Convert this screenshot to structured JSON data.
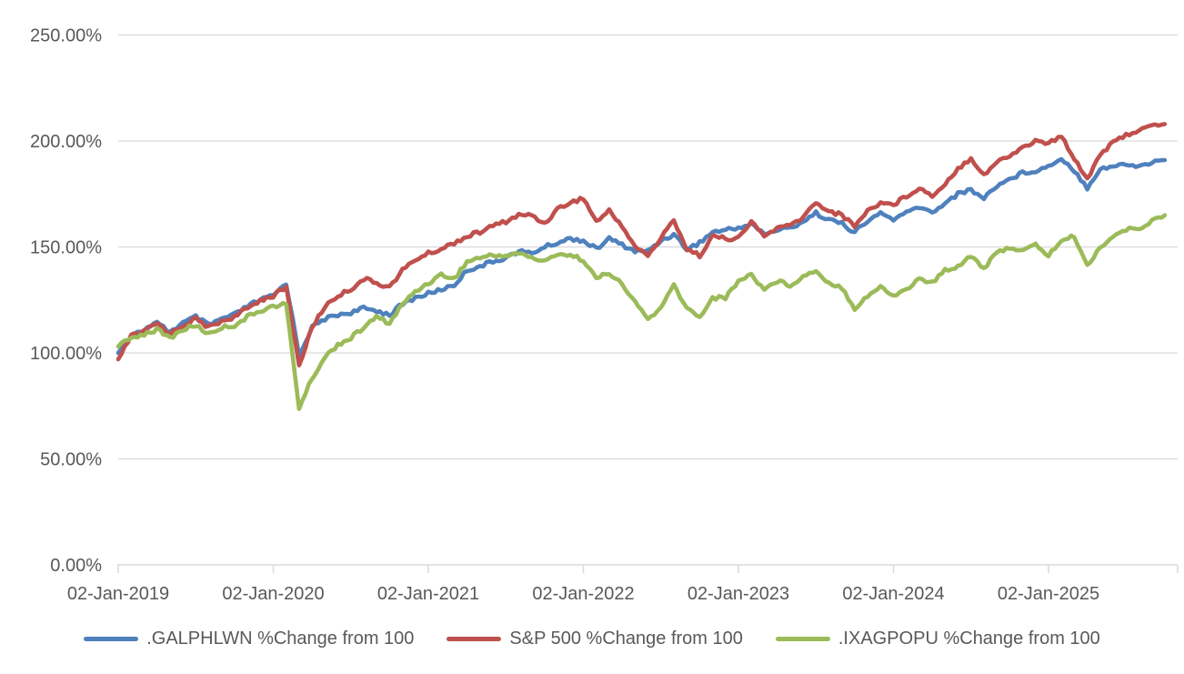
{
  "chart_data": {
    "type": "line",
    "title": "",
    "grid": "horizontal",
    "legend_position": "bottom",
    "background": "#ffffff",
    "gridline_color": "#d9d9d9",
    "axis_text_color": "#595959",
    "y_axis": {
      "unit": "%",
      "min": 0,
      "max": 250,
      "step": 50,
      "tick_values": [
        0,
        50,
        100,
        150,
        200,
        250
      ],
      "tick_labels": [
        "0.00%",
        "50.00%",
        "100.00%",
        "150.00%",
        "200.00%",
        "250.00%"
      ]
    },
    "x_axis": {
      "tick_labels": [
        "02-Jan-2019",
        "02-Jan-2020",
        "02-Jan-2021",
        "02-Jan-2022",
        "02-Jan-2023",
        "02-Jan-2024",
        "02-Jan-2025"
      ],
      "start": "2019-01",
      "end": "2025-10",
      "points_per_month": 1
    },
    "series": [
      {
        "name": ".GALPHLWN %Change from 100",
        "color": "#4F81BD",
        "values": [
          100,
          108,
          111,
          114,
          110,
          114,
          117,
          113,
          116,
          118,
          122,
          125,
          127,
          133,
          99,
          112,
          116,
          118,
          119,
          121,
          120,
          118,
          123,
          126,
          128,
          130,
          132,
          139,
          141,
          143,
          145,
          148,
          147,
          150,
          152,
          154,
          153,
          149,
          154,
          151,
          148,
          148,
          153,
          156,
          149,
          152,
          157,
          158,
          159,
          161,
          156,
          158,
          159,
          162,
          166,
          163,
          161,
          157,
          162,
          166,
          163,
          166,
          169,
          166,
          171,
          175,
          177,
          173,
          179,
          182,
          185,
          186,
          188,
          192,
          186,
          178,
          187,
          188,
          189,
          188,
          190,
          191
        ]
      },
      {
        "name": "S&P 500 %Change from 100",
        "color": "#C0504D",
        "values": [
          97,
          108,
          110,
          114,
          109,
          113,
          116,
          112,
          115,
          117,
          121,
          125,
          127,
          131,
          94,
          112,
          122,
          127,
          130,
          135,
          133,
          131,
          139,
          144,
          147,
          149,
          152,
          155,
          157,
          160,
          162,
          165,
          165,
          161,
          168,
          171,
          173,
          162,
          167,
          160,
          150,
          146,
          154,
          163,
          149,
          146,
          155,
          154,
          154,
          162,
          155,
          159,
          160,
          164,
          171,
          167,
          165,
          160,
          167,
          171,
          170,
          174,
          178,
          174,
          180,
          187,
          192,
          184,
          190,
          193,
          197,
          200,
          199,
          202,
          192,
          182,
          194,
          199,
          203,
          205,
          207,
          208
        ]
      },
      {
        "name": ".IXAGPOPU %Change from 100",
        "color": "#9BBB59",
        "values": [
          103,
          107,
          109,
          111,
          107,
          111,
          113,
          109,
          112,
          113,
          117,
          120,
          122,
          123,
          74,
          88,
          98,
          104,
          107,
          112,
          117,
          114,
          123,
          129,
          133,
          137,
          135,
          143,
          145,
          146,
          146,
          147,
          145,
          143,
          147,
          146,
          144,
          135,
          138,
          132,
          124,
          116,
          121,
          132,
          121,
          117,
          126,
          126,
          134,
          137,
          130,
          134,
          132,
          136,
          139,
          133,
          131,
          121,
          127,
          131,
          127,
          130,
          135,
          133,
          139,
          141,
          146,
          140,
          147,
          150,
          148,
          151,
          146,
          153,
          155,
          141,
          150,
          155,
          158,
          159,
          162,
          165
        ]
      }
    ]
  }
}
